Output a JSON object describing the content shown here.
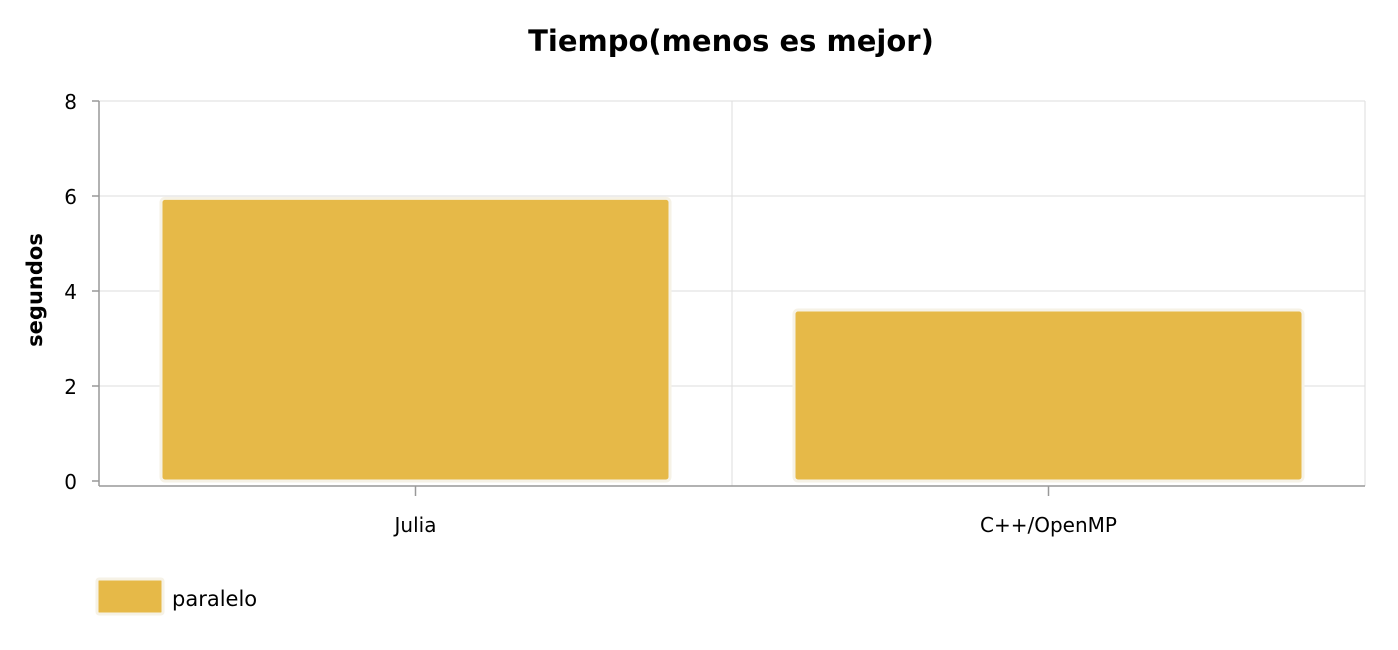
{
  "chart_data": {
    "type": "bar",
    "title": "Tiempo(menos es mejor)",
    "xlabel": "",
    "ylabel": "segundos",
    "categories": [
      "Julia",
      "C++/OpenMP"
    ],
    "series": [
      {
        "name": "paralelo",
        "values": [
          5.95,
          3.6
        ],
        "color": "#E6B948"
      }
    ],
    "ylim": [
      0,
      8
    ],
    "yticks": [
      0,
      2,
      4,
      6,
      8
    ],
    "grid": true,
    "legend_position": "bottom-left",
    "colors": {
      "grid": "#dddddd",
      "axis": "#999999",
      "bar_border": "#f6f2e6"
    }
  }
}
